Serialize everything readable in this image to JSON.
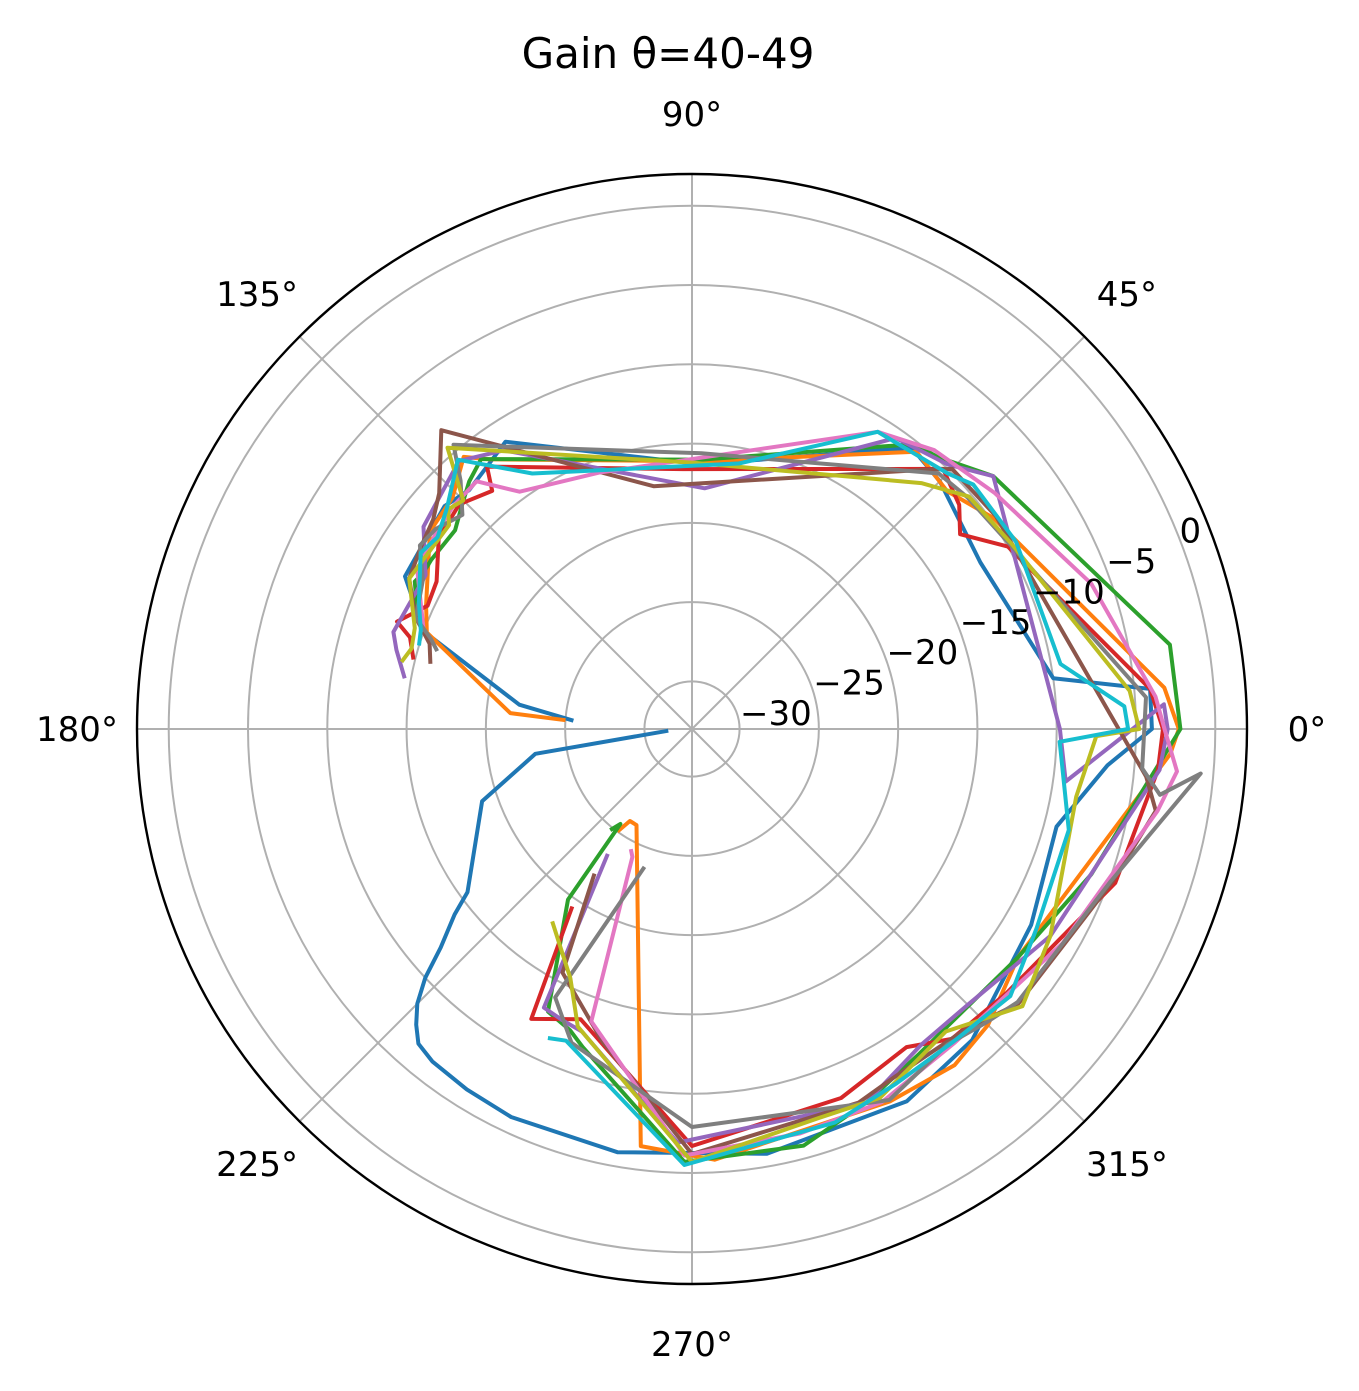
{
  "chart_data": {
    "type": "polar-line",
    "title": "Gain θ=40-49",
    "angle_unit": "degrees",
    "angle_ticks": [
      {
        "angle": 0,
        "label": "0°"
      },
      {
        "angle": 45,
        "label": "45°"
      },
      {
        "angle": 90,
        "label": "90°"
      },
      {
        "angle": 135,
        "label": "135°"
      },
      {
        "angle": 180,
        "label": "180°"
      },
      {
        "angle": 225,
        "label": "225°"
      },
      {
        "angle": 270,
        "label": "270°"
      },
      {
        "angle": 315,
        "label": "315°"
      }
    ],
    "radial_ticks": [
      {
        "value": -30,
        "label": "−30"
      },
      {
        "value": -25,
        "label": "−25"
      },
      {
        "value": -20,
        "label": "−20"
      },
      {
        "value": -15,
        "label": "−15"
      },
      {
        "value": -10,
        "label": "−10"
      },
      {
        "value": -5,
        "label": "−5"
      },
      {
        "value": 0,
        "label": "0"
      }
    ],
    "rlim": [
      -33,
      2
    ],
    "grid": true,
    "series": [
      {
        "color": "#1f77b4",
        "points": [
          [
            -176,
            -31.5
          ],
          [
            -171,
            -23
          ],
          [
            -161,
            -19
          ],
          [
            -144,
            -15.5
          ],
          [
            -142,
            -14
          ],
          [
            -139,
            -12
          ],
          [
            -137,
            -10
          ],
          [
            -135,
            -8.5
          ],
          [
            -133,
            -7.5
          ],
          [
            -131,
            -6.7
          ],
          [
            -128,
            -6.4
          ],
          [
            -122,
            -6.2
          ],
          [
            -115,
            -6
          ],
          [
            -100,
            -5.9
          ],
          [
            -80,
            -5.8
          ],
          [
            -60,
            -5.9
          ],
          [
            -48,
            -6.6
          ],
          [
            -30,
            -8.3
          ],
          [
            -15,
            -9.2
          ],
          [
            -5,
            -6.7
          ],
          [
            0,
            -4
          ],
          [
            5,
            -4
          ],
          [
            8,
            -10
          ],
          [
            30,
            -12
          ],
          [
            45,
            -10.9
          ],
          [
            52,
            -10.5
          ],
          [
            88,
            -16.3
          ],
          [
            123,
            -11.4
          ],
          [
            128,
            -12
          ],
          [
            133,
            -12.4
          ],
          [
            138,
            -12
          ],
          [
            152,
            -12.5
          ],
          [
            160,
            -15
          ],
          [
            172,
            -22
          ],
          [
            176,
            -25.5
          ]
        ]
      },
      {
        "color": "#ff7f0e",
        "points": [
          [
            -126,
            -25
          ],
          [
            -124,
            -26
          ],
          [
            -120,
            -26
          ],
          [
            -97,
            -6.5
          ],
          [
            -87,
            -5.8
          ],
          [
            -62,
            -6.4
          ],
          [
            -52,
            -6.1
          ],
          [
            -45,
            -6.6
          ],
          [
            -35,
            -7.9
          ],
          [
            -3,
            -2.8
          ],
          [
            0,
            -2.3
          ],
          [
            5,
            -3.1
          ],
          [
            35,
            -9.8
          ],
          [
            43,
            -11
          ],
          [
            51,
            -10.5
          ],
          [
            88,
            -16.1
          ],
          [
            127,
            -11.7
          ],
          [
            130,
            -10.6
          ],
          [
            136,
            -12
          ],
          [
            143,
            -12.3
          ],
          [
            155,
            -14.5
          ],
          [
            160,
            -15.2
          ],
          [
            175,
            -21.5
          ],
          [
            176,
            -25
          ]
        ]
      },
      {
        "color": "#2ca02c",
        "points": [
          [
            -129,
            -24.8
          ],
          [
            -127,
            -25.5
          ],
          [
            -126,
            -19.7
          ],
          [
            -117,
            -13
          ],
          [
            -112,
            -12.5
          ],
          [
            -109,
            -11.8
          ],
          [
            -91,
            -5.7
          ],
          [
            -75,
            -5.8
          ],
          [
            -65,
            -7
          ],
          [
            -55,
            -8
          ],
          [
            -35,
            -7.9
          ],
          [
            -20,
            -6.2
          ],
          [
            0,
            -2.2
          ],
          [
            10,
            -2.4
          ],
          [
            40,
            -8.2
          ],
          [
            48,
            -9.9
          ],
          [
            52,
            -10.2
          ],
          [
            88,
            -16
          ],
          [
            128,
            -11.4
          ],
          [
            132,
            -12
          ],
          [
            136,
            -12.8
          ],
          [
            140,
            -13.5
          ],
          [
            147,
            -13.4
          ],
          [
            150,
            -13.4
          ],
          [
            152,
            -13.2
          ],
          [
            156,
            -14
          ],
          [
            158,
            -14.4
          ]
        ]
      },
      {
        "color": "#d62728",
        "points": [
          [
            -124,
            -19.5
          ],
          [
            -119,
            -12.1
          ],
          [
            -111,
            -13.4
          ],
          [
            -90,
            -6.7
          ],
          [
            -68,
            -7.9
          ],
          [
            -56,
            -8.8
          ],
          [
            -50,
            -7.5
          ],
          [
            -40,
            -7.1
          ],
          [
            -20,
            -4.6
          ],
          [
            -5,
            -3.5
          ],
          [
            0,
            -3.3
          ],
          [
            5,
            -4
          ],
          [
            30,
            -10
          ],
          [
            36,
            -12.1
          ],
          [
            40,
            -11
          ],
          [
            46,
            -10.2
          ],
          [
            92,
            -16.6
          ],
          [
            128,
            -12
          ],
          [
            130,
            -13.4
          ],
          [
            136,
            -12.6
          ],
          [
            143,
            -13
          ],
          [
            150,
            -14.4
          ],
          [
            155,
            -14.6
          ],
          [
            160,
            -13.2
          ],
          [
            162,
            -14.3
          ],
          [
            166,
            -14.9
          ]
        ]
      },
      {
        "color": "#9467bd",
        "points": [
          [
            -124,
            -23.5
          ],
          [
            -118,
            -13.1
          ],
          [
            -114,
            -12.9
          ],
          [
            -110,
            -12.7
          ],
          [
            -92,
            -6.9
          ],
          [
            -65,
            -7
          ],
          [
            -54,
            -8.4
          ],
          [
            -45,
            -8.4
          ],
          [
            -30,
            -6.9
          ],
          [
            -5,
            -3.4
          ],
          [
            0,
            -3
          ],
          [
            3,
            -3.2
          ],
          [
            -8,
            -9.2
          ],
          [
            0,
            -9.8
          ],
          [
            40,
            -8.2
          ],
          [
            46,
            -9.8
          ],
          [
            55,
            -10.6
          ],
          [
            87,
            -17.8
          ],
          [
            124,
            -11.8
          ],
          [
            131,
            -10.6
          ],
          [
            143,
            -11.8
          ],
          [
            150,
            -13.6
          ],
          [
            162,
            -13.2
          ],
          [
            165,
            -13.7
          ],
          [
            170,
            -14.6
          ]
        ]
      },
      {
        "color": "#8c564b",
        "points": [
          [
            -124,
            -22
          ],
          [
            -118,
            -15.6
          ],
          [
            -106,
            -12.5
          ],
          [
            -90,
            -6.2
          ],
          [
            -66,
            -7.2
          ],
          [
            -60,
            -7.6
          ],
          [
            -48,
            -7.4
          ],
          [
            -40,
            -6.1
          ],
          [
            -20,
            -4.8
          ],
          [
            -10,
            -3.3
          ],
          [
            -6,
            -4.2
          ],
          [
            35,
            -9.6
          ],
          [
            45,
            -9.8
          ],
          [
            48,
            -11
          ],
          [
            99,
            -17.5
          ],
          [
            130,
            -8.4
          ],
          [
            137,
            -11.2
          ],
          [
            141,
            -12
          ],
          [
            146,
            -12.4
          ],
          [
            152,
            -12.8
          ],
          [
            158,
            -14.2
          ],
          [
            162,
            -15.6
          ],
          [
            166,
            -16
          ]
        ]
      },
      {
        "color": "#e377c2",
        "points": [
          [
            -117,
            -24.5
          ],
          [
            -115,
            -24.1
          ],
          [
            -109,
            -13.5
          ],
          [
            -91,
            -6.1
          ],
          [
            -75,
            -6.6
          ],
          [
            -63,
            -6.6
          ],
          [
            -50,
            -7.2
          ],
          [
            -30,
            -6
          ],
          [
            -10,
            -3.2
          ],
          [
            -5,
            -2.3
          ],
          [
            0,
            -3.2
          ],
          [
            4,
            -3.7
          ],
          [
            20,
            -6.2
          ],
          [
            38,
            -8.8
          ],
          [
            49,
            -9.7
          ],
          [
            58,
            -10.9
          ],
          [
            110,
            -15.8
          ],
          [
            126,
            -14.5
          ],
          [
            131,
            -12.3
          ],
          [
            137,
            -12.4
          ],
          [
            143,
            -12.7
          ],
          [
            150,
            -13
          ],
          [
            160,
            -15
          ]
        ]
      },
      {
        "color": "#7f7f7f",
        "points": [
          [
            -109,
            -23.8
          ],
          [
            -117,
            -14
          ],
          [
            -111,
            -11.8
          ],
          [
            -90,
            -7.9
          ],
          [
            -62,
            -6.5
          ],
          [
            -51,
            -7.4
          ],
          [
            -45,
            -6.8
          ],
          [
            -40,
            -6.2
          ],
          [
            -20,
            -4.9
          ],
          [
            -5,
            -0.8
          ],
          [
            -8,
            -3.2
          ],
          [
            -5,
            -4.5
          ],
          [
            4,
            -4.3
          ],
          [
            30,
            -9.8
          ],
          [
            40,
            -10.3
          ],
          [
            46,
            -10.6
          ],
          [
            88,
            -15.6
          ],
          [
            130,
            -9.6
          ],
          [
            133,
            -11.6
          ],
          [
            137,
            -13.2
          ],
          [
            142,
            -12.5
          ],
          [
            146,
            -12.3
          ],
          [
            151,
            -13.6
          ],
          [
            155,
            -14
          ],
          [
            158,
            -14.2
          ],
          [
            161,
            -15.6
          ],
          [
            163,
            -16.2
          ]
        ]
      },
      {
        "color": "#bcbd22",
        "points": [
          [
            -126,
            -18
          ],
          [
            -116,
            -15.5
          ],
          [
            -111,
            -12.9
          ],
          [
            -90,
            -5.7
          ],
          [
            -72,
            -7.2
          ],
          [
            -63,
            -6.9
          ],
          [
            -50,
            -8.1
          ],
          [
            -40,
            -5.8
          ],
          [
            -30,
            -6.9
          ],
          [
            -10,
            -8.4
          ],
          [
            -1,
            -7.5
          ],
          [
            0,
            -4.8
          ],
          [
            5,
            -5.3
          ],
          [
            30,
            -9.7
          ],
          [
            40,
            -10.2
          ],
          [
            47,
            -11.8
          ],
          [
            90,
            -16.2
          ],
          [
            131,
            -9.5
          ],
          [
            135,
            -12.6
          ],
          [
            138,
            -12.3
          ],
          [
            140,
            -13
          ],
          [
            152,
            -12.8
          ],
          [
            160,
            -14.4
          ],
          [
            164,
            -14.6
          ],
          [
            167,
            -14.2
          ]
        ]
      },
      {
        "color": "#17becf",
        "points": [
          [
            -115,
            -11.5
          ],
          [
            -112,
            -11.8
          ],
          [
            -91,
            -5.5
          ],
          [
            -70,
            -6.6
          ],
          [
            -60,
            -7.2
          ],
          [
            -50,
            -7.3
          ],
          [
            -40,
            -6.8
          ],
          [
            -30,
            -7.9
          ],
          [
            -15,
            -8.4
          ],
          [
            -2,
            -9.8
          ],
          [
            0,
            -5.5
          ],
          [
            3,
            -5.7
          ],
          [
            10,
            -9.4
          ],
          [
            30,
            -9.4
          ],
          [
            41,
            -9.5
          ],
          [
            45,
            -10.2
          ],
          [
            58,
            -10.9
          ],
          [
            80,
            -16
          ],
          [
            122,
            -14
          ],
          [
            131,
            -10.5
          ],
          [
            138,
            -12.2
          ],
          [
            143,
            -12.9
          ],
          [
            147,
            -12.6
          ],
          [
            155,
            -14
          ],
          [
            160,
            -14.8
          ],
          [
            163,
            -15
          ]
        ]
      }
    ]
  }
}
